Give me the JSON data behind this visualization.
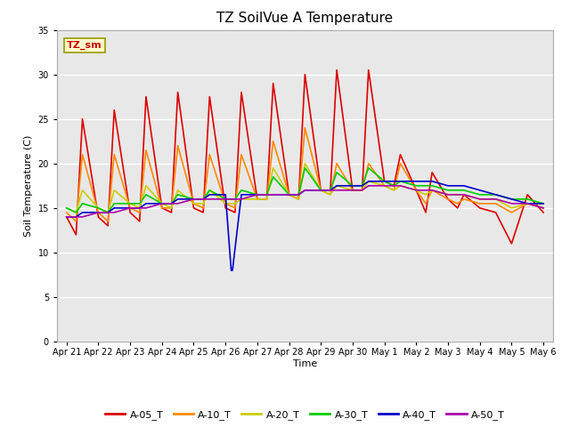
{
  "title": "TZ SoilVue A Temperature",
  "ylabel": "Soil Temperature (C)",
  "xlabel": "Time",
  "ylim": [
    0,
    35
  ],
  "bg_color": "#e8e8e8",
  "fig_color": "#ffffff",
  "annotation_text": "TZ_sm",
  "annotation_color": "#cc0000",
  "annotation_bg": "#ffffcc",
  "annotation_border": "#999900",
  "series_names": [
    "A-05_T",
    "A-10_T",
    "A-20_T",
    "A-30_T",
    "A-40_T",
    "A-50_T"
  ],
  "series_colors": [
    "#dd0000",
    "#ff8800",
    "#cccc00",
    "#00cc00",
    "#0000cc",
    "#aa00aa"
  ],
  "linewidth": 1.2,
  "A-05_T_x": [
    0.0,
    0.3,
    0.5,
    1.0,
    1.3,
    1.5,
    2.0,
    2.3,
    2.5,
    3.0,
    3.3,
    3.5,
    4.0,
    4.3,
    4.5,
    5.0,
    5.3,
    5.5,
    6.0,
    6.3,
    6.5,
    7.0,
    7.3,
    7.5,
    8.0,
    8.3,
    8.5,
    9.0,
    9.3,
    9.5,
    10.0,
    10.3,
    10.5,
    11.0,
    11.3,
    11.5,
    12.0,
    12.3,
    12.5,
    13.0,
    13.5,
    14.0,
    14.5,
    15.0
  ],
  "A-05_T_y": [
    14.0,
    12.0,
    25.0,
    14.0,
    13.0,
    26.0,
    14.5,
    13.5,
    27.5,
    15.0,
    14.5,
    28.0,
    15.0,
    14.5,
    27.5,
    15.0,
    14.5,
    28.0,
    16.0,
    16.0,
    29.0,
    16.5,
    16.0,
    30.0,
    17.0,
    17.0,
    30.5,
    17.0,
    17.0,
    30.5,
    18.0,
    17.5,
    21.0,
    17.0,
    14.5,
    19.0,
    16.0,
    15.0,
    16.5,
    15.0,
    14.5,
    11.0,
    16.5,
    14.5
  ],
  "A-10_T_x": [
    0.0,
    0.3,
    0.5,
    1.0,
    1.3,
    1.5,
    2.0,
    2.3,
    2.5,
    3.0,
    3.3,
    3.5,
    4.0,
    4.3,
    4.5,
    5.0,
    5.3,
    5.5,
    6.0,
    6.3,
    6.5,
    7.0,
    7.3,
    7.5,
    8.0,
    8.3,
    8.5,
    9.0,
    9.3,
    9.5,
    10.0,
    10.3,
    10.5,
    11.0,
    11.3,
    11.5,
    12.0,
    12.3,
    12.5,
    13.0,
    13.5,
    14.0,
    14.5,
    15.0
  ],
  "A-10_T_y": [
    14.5,
    13.5,
    21.0,
    14.5,
    13.5,
    21.0,
    15.0,
    14.5,
    21.5,
    15.0,
    15.0,
    22.0,
    15.5,
    15.0,
    21.0,
    15.5,
    15.0,
    21.0,
    16.0,
    16.0,
    22.5,
    16.5,
    16.0,
    24.0,
    17.0,
    16.5,
    20.0,
    17.0,
    17.0,
    20.0,
    17.5,
    17.0,
    20.0,
    17.0,
    15.5,
    17.0,
    16.0,
    15.5,
    16.0,
    15.5,
    15.5,
    14.5,
    15.5,
    15.0
  ],
  "A-20_T_x": [
    0.0,
    0.3,
    0.5,
    1.0,
    1.3,
    1.5,
    2.0,
    2.3,
    2.5,
    3.0,
    3.3,
    3.5,
    4.0,
    4.3,
    4.5,
    5.0,
    5.3,
    5.5,
    6.0,
    6.3,
    6.5,
    7.0,
    7.3,
    7.5,
    8.0,
    8.3,
    8.5,
    9.0,
    9.3,
    9.5,
    10.0,
    10.3,
    10.5,
    11.0,
    11.3,
    11.5,
    12.0,
    12.3,
    12.5,
    13.0,
    13.5,
    14.0,
    14.5,
    15.0
  ],
  "A-20_T_y": [
    15.0,
    14.5,
    17.0,
    15.0,
    14.5,
    17.0,
    15.5,
    15.0,
    17.5,
    15.5,
    15.0,
    17.0,
    15.5,
    15.5,
    17.0,
    15.5,
    15.5,
    16.0,
    16.0,
    16.0,
    19.5,
    16.5,
    16.0,
    20.0,
    17.0,
    16.5,
    17.5,
    17.0,
    17.0,
    18.0,
    17.5,
    17.0,
    17.5,
    17.0,
    16.5,
    17.0,
    16.5,
    16.5,
    16.5,
    16.0,
    16.0,
    15.0,
    15.5,
    15.5
  ],
  "A-30_T_x": [
    0.0,
    0.3,
    0.5,
    1.0,
    1.3,
    1.5,
    2.0,
    2.3,
    2.5,
    3.0,
    3.3,
    3.5,
    4.0,
    4.3,
    4.5,
    5.0,
    5.3,
    5.5,
    6.0,
    6.3,
    6.5,
    7.0,
    7.3,
    7.5,
    8.0,
    8.3,
    8.5,
    9.0,
    9.3,
    9.5,
    10.0,
    10.3,
    10.5,
    11.0,
    11.3,
    11.5,
    12.0,
    12.3,
    12.5,
    13.0,
    13.5,
    14.0,
    14.5,
    15.0
  ],
  "A-30_T_y": [
    15.0,
    14.5,
    15.5,
    15.0,
    14.5,
    15.5,
    15.5,
    15.5,
    16.5,
    15.5,
    15.5,
    16.5,
    16.0,
    16.0,
    17.0,
    16.0,
    16.0,
    17.0,
    16.5,
    16.5,
    18.5,
    16.5,
    16.5,
    19.5,
    17.0,
    17.0,
    19.0,
    17.5,
    17.5,
    19.5,
    18.0,
    17.5,
    18.0,
    17.5,
    17.5,
    17.5,
    17.0,
    17.0,
    17.0,
    16.5,
    16.5,
    16.0,
    16.0,
    15.5
  ],
  "A-40_T_x": [
    0.0,
    0.3,
    0.5,
    1.0,
    1.3,
    1.5,
    2.0,
    2.3,
    2.5,
    3.0,
    3.3,
    3.5,
    4.0,
    4.3,
    4.5,
    5.0,
    5.18,
    5.22,
    5.5,
    6.0,
    6.3,
    6.5,
    7.0,
    7.3,
    7.5,
    8.0,
    8.3,
    8.5,
    9.0,
    9.3,
    9.5,
    10.0,
    10.3,
    10.5,
    11.0,
    11.3,
    11.5,
    12.0,
    12.3,
    12.5,
    13.0,
    13.5,
    14.0,
    14.5,
    15.0
  ],
  "A-40_T_y": [
    14.0,
    14.0,
    14.5,
    14.5,
    14.5,
    15.0,
    15.0,
    15.0,
    15.5,
    15.5,
    15.5,
    16.0,
    16.0,
    16.0,
    16.5,
    16.5,
    8.0,
    8.0,
    16.5,
    16.5,
    16.5,
    16.5,
    16.5,
    16.5,
    17.0,
    17.0,
    17.0,
    17.5,
    17.5,
    17.5,
    18.0,
    18.0,
    18.0,
    18.0,
    18.0,
    18.0,
    18.0,
    17.5,
    17.5,
    17.5,
    17.0,
    16.5,
    16.0,
    15.5,
    15.5
  ],
  "A-50_T_x": [
    0.0,
    0.3,
    0.5,
    1.0,
    1.3,
    1.5,
    2.0,
    2.3,
    2.5,
    3.0,
    3.3,
    3.5,
    4.0,
    4.3,
    4.5,
    5.0,
    5.3,
    5.5,
    6.0,
    6.3,
    6.5,
    7.0,
    7.3,
    7.5,
    8.0,
    8.3,
    8.5,
    9.0,
    9.3,
    9.5,
    10.0,
    10.3,
    10.5,
    11.0,
    11.3,
    11.5,
    12.0,
    12.3,
    12.5,
    13.0,
    13.5,
    14.0,
    14.5,
    15.0
  ],
  "A-50_T_y": [
    14.0,
    14.0,
    14.0,
    14.5,
    14.5,
    14.5,
    15.0,
    15.0,
    15.0,
    15.5,
    15.5,
    15.5,
    16.0,
    16.0,
    16.0,
    16.0,
    16.0,
    16.0,
    16.5,
    16.5,
    16.5,
    16.5,
    16.5,
    17.0,
    17.0,
    17.0,
    17.0,
    17.0,
    17.0,
    17.5,
    17.5,
    17.5,
    17.5,
    17.0,
    17.0,
    17.0,
    16.5,
    16.5,
    16.5,
    16.0,
    16.0,
    15.5,
    15.5,
    15.0
  ],
  "xtick_positions": [
    0,
    1,
    2,
    3,
    4,
    5,
    6,
    7,
    8,
    9,
    10,
    11,
    12,
    13,
    14,
    15
  ],
  "xtick_labels": [
    "Apr 21",
    "Apr 22",
    "Apr 23",
    "Apr 24",
    "Apr 25",
    "Apr 26",
    "Apr 27",
    "Apr 28",
    "Apr 29",
    "Apr 30",
    "May 1",
    "May 2",
    "May 3",
    "May 4",
    "May 5",
    "May 6"
  ],
  "ytick_positions": [
    0,
    5,
    10,
    15,
    20,
    25,
    30,
    35
  ],
  "ytick_labels": [
    "0",
    "5",
    "10",
    "15",
    "20",
    "25",
    "30",
    "35"
  ],
  "grid_color": "#ffffff",
  "legend_entries": [
    "A-05_T",
    "A-10_T",
    "A-20_T",
    "A-30_T",
    "A-40_T",
    "A-50_T"
  ],
  "legend_colors": [
    "#dd0000",
    "#ff8800",
    "#cccc00",
    "#00cc00",
    "#0000cc",
    "#aa00aa"
  ]
}
